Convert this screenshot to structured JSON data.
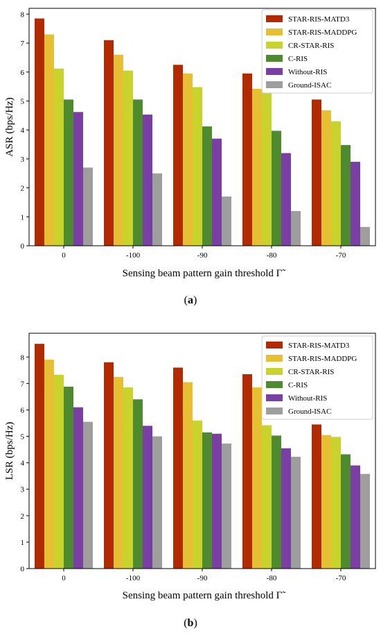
{
  "panels": [
    {
      "caption_open": "(",
      "caption_letter": "a",
      "caption_close": ")",
      "chart_data": {
        "type": "bar",
        "categories": [
          "0",
          "-100",
          "-90",
          "-80",
          "-70"
        ],
        "xlabel": "Sensing beam pattern gain threshold Γ̃",
        "ylabel": "ASR (bps/Hz)",
        "ylim": [
          0,
          8.2
        ],
        "yticks": [
          0,
          1,
          2,
          3,
          4,
          5,
          6,
          7,
          8
        ],
        "grid": false,
        "legend_position": "top-right",
        "series": [
          {
            "name": "STAR-RIS-MATD3",
            "color": "#b22a00",
            "values": [
              7.85,
              7.1,
              6.25,
              5.95,
              5.05
            ]
          },
          {
            "name": "STAR-RIS-MADDPG",
            "color": "#e6c032",
            "values": [
              7.3,
              6.6,
              5.95,
              5.42,
              4.68
            ]
          },
          {
            "name": "CR-STAR-RIS",
            "color": "#c8d42c",
            "values": [
              6.12,
              6.05,
              5.48,
              5.28,
              4.3
            ]
          },
          {
            "name": "C-RIS",
            "color": "#4e8a2e",
            "values": [
              5.05,
              5.05,
              4.12,
              3.97,
              3.48
            ]
          },
          {
            "name": "Without-RIS",
            "color": "#7a3fa3",
            "values": [
              4.62,
              4.53,
              3.7,
              3.2,
              2.9
            ]
          },
          {
            "name": "Ground-ISAC",
            "color": "#9e9e9e",
            "values": [
              2.7,
              2.5,
              1.7,
              1.2,
              0.65
            ]
          }
        ]
      }
    },
    {
      "caption_open": "(",
      "caption_letter": "b",
      "caption_close": ")",
      "chart_data": {
        "type": "bar",
        "categories": [
          "0",
          "-100",
          "-90",
          "-80",
          "-70"
        ],
        "xlabel": "Sensing beam pattern gain threshold Γ̃",
        "ylabel": "LSR (bps/Hz)",
        "ylim": [
          0,
          8.9
        ],
        "yticks": [
          0,
          1,
          2,
          3,
          4,
          5,
          6,
          7,
          8
        ],
        "grid": false,
        "legend_position": "top-right",
        "series": [
          {
            "name": "STAR-RIS-MATD3",
            "color": "#b22a00",
            "values": [
              8.5,
              7.8,
              7.6,
              7.35,
              5.45
            ]
          },
          {
            "name": "STAR-RIS-MADDPG",
            "color": "#e6c032",
            "values": [
              7.9,
              7.25,
              7.05,
              6.85,
              5.05
            ]
          },
          {
            "name": "CR-STAR-RIS",
            "color": "#c8d42c",
            "values": [
              7.33,
              6.85,
              5.6,
              5.42,
              4.98
            ]
          },
          {
            "name": "C-RIS",
            "color": "#4e8a2e",
            "values": [
              6.88,
              6.4,
              5.15,
              5.03,
              4.32
            ]
          },
          {
            "name": "Without-RIS",
            "color": "#7a3fa3",
            "values": [
              6.1,
              5.4,
              5.1,
              4.55,
              3.9
            ]
          },
          {
            "name": "Ground-ISAC",
            "color": "#9e9e9e",
            "values": [
              5.55,
              5.0,
              4.73,
              4.23,
              3.58
            ]
          }
        ]
      }
    }
  ]
}
